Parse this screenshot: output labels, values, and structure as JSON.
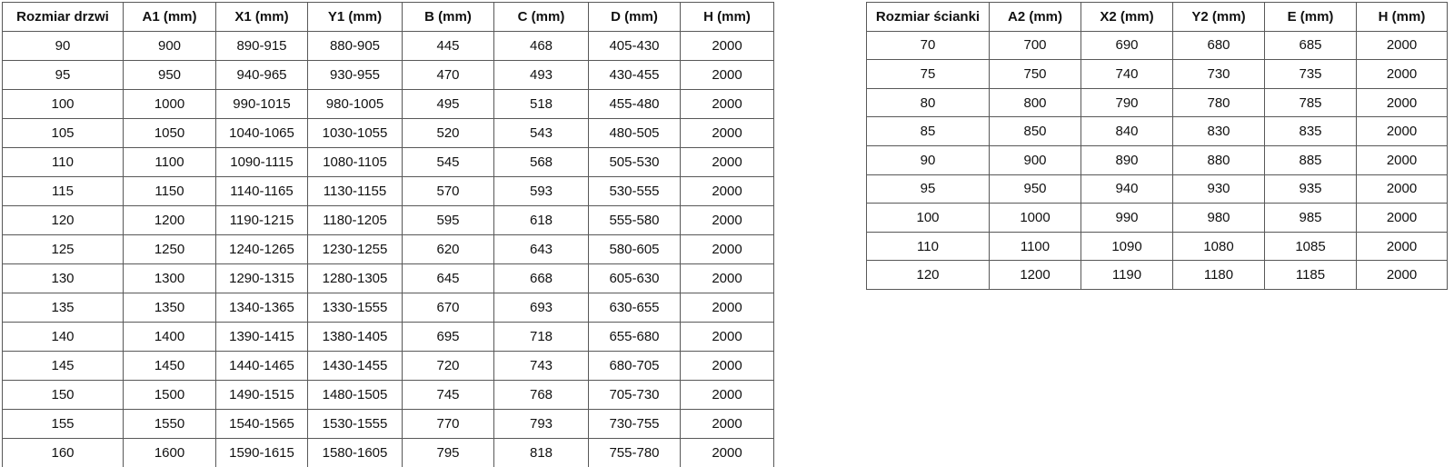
{
  "door_table": {
    "headers": [
      "Rozmiar drzwi",
      "A1 (mm)",
      "X1 (mm)",
      "Y1 (mm)",
      "B (mm)",
      "C (mm)",
      "D (mm)",
      "H (mm)"
    ],
    "rows": [
      [
        "90",
        "900",
        "890-915",
        "880-905",
        "445",
        "468",
        "405-430",
        "2000"
      ],
      [
        "95",
        "950",
        "940-965",
        "930-955",
        "470",
        "493",
        "430-455",
        "2000"
      ],
      [
        "100",
        "1000",
        "990-1015",
        "980-1005",
        "495",
        "518",
        "455-480",
        "2000"
      ],
      [
        "105",
        "1050",
        "1040-1065",
        "1030-1055",
        "520",
        "543",
        "480-505",
        "2000"
      ],
      [
        "110",
        "1100",
        "1090-1115",
        "1080-1105",
        "545",
        "568",
        "505-530",
        "2000"
      ],
      [
        "115",
        "1150",
        "1140-1165",
        "1130-1155",
        "570",
        "593",
        "530-555",
        "2000"
      ],
      [
        "120",
        "1200",
        "1190-1215",
        "1180-1205",
        "595",
        "618",
        "555-580",
        "2000"
      ],
      [
        "125",
        "1250",
        "1240-1265",
        "1230-1255",
        "620",
        "643",
        "580-605",
        "2000"
      ],
      [
        "130",
        "1300",
        "1290-1315",
        "1280-1305",
        "645",
        "668",
        "605-630",
        "2000"
      ],
      [
        "135",
        "1350",
        "1340-1365",
        "1330-1555",
        "670",
        "693",
        "630-655",
        "2000"
      ],
      [
        "140",
        "1400",
        "1390-1415",
        "1380-1405",
        "695",
        "718",
        "655-680",
        "2000"
      ],
      [
        "145",
        "1450",
        "1440-1465",
        "1430-1455",
        "720",
        "743",
        "680-705",
        "2000"
      ],
      [
        "150",
        "1500",
        "1490-1515",
        "1480-1505",
        "745",
        "768",
        "705-730",
        "2000"
      ],
      [
        "155",
        "1550",
        "1540-1565",
        "1530-1555",
        "770",
        "793",
        "730-755",
        "2000"
      ],
      [
        "160",
        "1600",
        "1590-1615",
        "1580-1605",
        "795",
        "818",
        "755-780",
        "2000"
      ]
    ]
  },
  "wall_table": {
    "headers": [
      "Rozmiar ścianki",
      "A2 (mm)",
      "X2 (mm)",
      "Y2 (mm)",
      "E (mm)",
      "H (mm)"
    ],
    "rows": [
      [
        "70",
        "700",
        "690",
        "680",
        "685",
        "2000"
      ],
      [
        "75",
        "750",
        "740",
        "730",
        "735",
        "2000"
      ],
      [
        "80",
        "800",
        "790",
        "780",
        "785",
        "2000"
      ],
      [
        "85",
        "850",
        "840",
        "830",
        "835",
        "2000"
      ],
      [
        "90",
        "900",
        "890",
        "880",
        "885",
        "2000"
      ],
      [
        "95",
        "950",
        "940",
        "930",
        "935",
        "2000"
      ],
      [
        "100",
        "1000",
        "990",
        "980",
        "985",
        "2000"
      ],
      [
        "110",
        "1100",
        "1090",
        "1080",
        "1085",
        "2000"
      ],
      [
        "120",
        "1200",
        "1190",
        "1180",
        "1185",
        "2000"
      ]
    ]
  },
  "colors": {
    "border": "#585858",
    "text": "#111111",
    "background": "#ffffff"
  }
}
